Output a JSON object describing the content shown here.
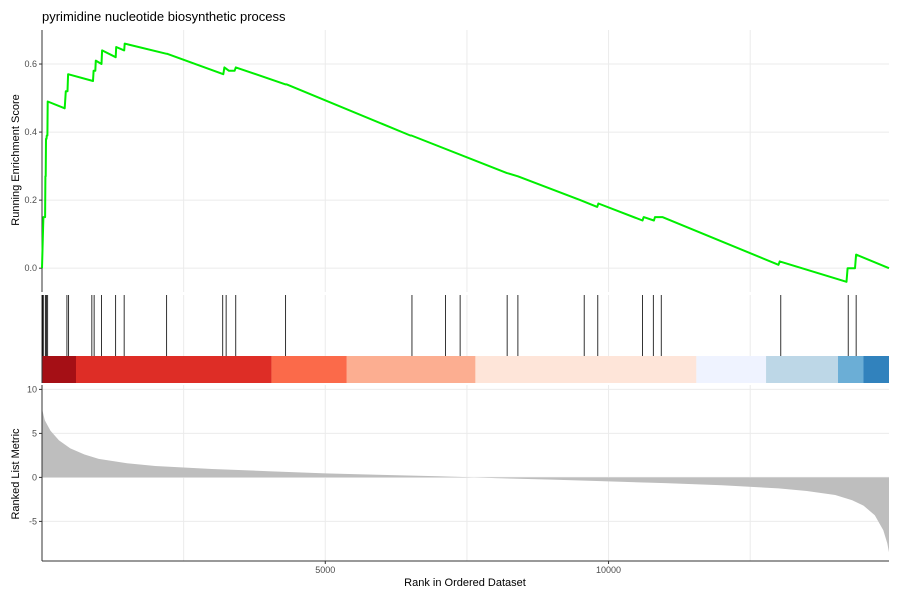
{
  "chart_data": {
    "type": "line",
    "title": "pyrimidine nucleotide biosynthetic process",
    "xlabel": "Rank in Ordered Dataset",
    "xlim": [
      0,
      14950
    ],
    "x_ticks": [
      {
        "value": 5000,
        "label": "5000"
      },
      {
        "value": 10000,
        "label": "10000"
      }
    ],
    "x_minor_gridlines": [
      2500,
      7500,
      12500
    ],
    "running_score": {
      "ylabel": "Running Enrichment Score",
      "ylim": [
        -0.07,
        0.7
      ],
      "y_ticks": [
        {
          "value": 0.0,
          "label": "0.0"
        },
        {
          "value": 0.2,
          "label": "0.2"
        },
        {
          "value": 0.4,
          "label": "0.4"
        },
        {
          "value": 0.6,
          "label": "0.6"
        }
      ],
      "color": "#00ee00",
      "points": [
        [
          0,
          0.0
        ],
        [
          20,
          0.12
        ],
        [
          25,
          0.15
        ],
        [
          55,
          0.15
        ],
        [
          60,
          0.27
        ],
        [
          65,
          0.27
        ],
        [
          70,
          0.38
        ],
        [
          80,
          0.38
        ],
        [
          85,
          0.39
        ],
        [
          95,
          0.39
        ],
        [
          100,
          0.49
        ],
        [
          400,
          0.47
        ],
        [
          420,
          0.52
        ],
        [
          450,
          0.52
        ],
        [
          460,
          0.57
        ],
        [
          900,
          0.55
        ],
        [
          910,
          0.58
        ],
        [
          940,
          0.58
        ],
        [
          950,
          0.61
        ],
        [
          1050,
          0.6
        ],
        [
          1060,
          0.64
        ],
        [
          1300,
          0.62
        ],
        [
          1310,
          0.65
        ],
        [
          1450,
          0.64
        ],
        [
          1460,
          0.66
        ],
        [
          2200,
          0.63
        ],
        [
          2210,
          0.63
        ],
        [
          3200,
          0.57
        ],
        [
          3220,
          0.59
        ],
        [
          3300,
          0.58
        ],
        [
          3400,
          0.58
        ],
        [
          3420,
          0.59
        ],
        [
          4300,
          0.54
        ],
        [
          4320,
          0.54
        ],
        [
          6500,
          0.39
        ],
        [
          6520,
          0.39
        ],
        [
          8200,
          0.28
        ],
        [
          8400,
          0.27
        ],
        [
          9500,
          0.2
        ],
        [
          9800,
          0.18
        ],
        [
          9820,
          0.19
        ],
        [
          10600,
          0.14
        ],
        [
          10620,
          0.15
        ],
        [
          10800,
          0.14
        ],
        [
          10820,
          0.15
        ],
        [
          10950,
          0.15
        ],
        [
          13000,
          0.01
        ],
        [
          13020,
          0.02
        ],
        [
          14200,
          -0.04
        ],
        [
          14220,
          0.0
        ],
        [
          14350,
          0.0
        ],
        [
          14370,
          0.04
        ],
        [
          14950,
          0.0
        ]
      ]
    },
    "gene_hits": [
      10,
      30,
      60,
      80,
      100,
      440,
      470,
      880,
      920,
      1050,
      1300,
      1450,
      2200,
      3190,
      3250,
      3420,
      4300,
      6530,
      7120,
      7380,
      8210,
      8400,
      9570,
      9810,
      10600,
      10790,
      10930,
      13040,
      14230,
      14370
    ],
    "rank_bands": [
      {
        "from": 0,
        "to": 600,
        "color": "#a50f15"
      },
      {
        "from": 600,
        "to": 4050,
        "color": "#de2d26"
      },
      {
        "from": 4050,
        "to": 5380,
        "color": "#fb6a4a"
      },
      {
        "from": 5380,
        "to": 7650,
        "color": "#fcae91"
      },
      {
        "from": 7650,
        "to": 11550,
        "color": "#fee5d9"
      },
      {
        "from": 11550,
        "to": 12780,
        "color": "#eff3ff"
      },
      {
        "from": 12780,
        "to": 14050,
        "color": "#bdd7e7"
      },
      {
        "from": 14050,
        "to": 14500,
        "color": "#6baed6"
      },
      {
        "from": 14500,
        "to": 14950,
        "color": "#3182bd"
      }
    ],
    "ranked_metric": {
      "ylabel": "Ranked List Metric",
      "ylim": [
        -9.5,
        10.5
      ],
      "y_ticks": [
        {
          "value": -5,
          "label": "-5"
        },
        {
          "value": 0,
          "label": "0"
        },
        {
          "value": 5,
          "label": "5"
        },
        {
          "value": 10,
          "label": "10"
        }
      ],
      "fill_color": "#bebebe",
      "points": [
        [
          0,
          7.8
        ],
        [
          50,
          6.5
        ],
        [
          150,
          5.3
        ],
        [
          300,
          4.2
        ],
        [
          500,
          3.3
        ],
        [
          750,
          2.6
        ],
        [
          1000,
          2.1
        ],
        [
          1500,
          1.6
        ],
        [
          2000,
          1.3
        ],
        [
          3000,
          0.95
        ],
        [
          4000,
          0.7
        ],
        [
          5000,
          0.45
        ],
        [
          6000,
          0.28
        ],
        [
          7000,
          0.12
        ],
        [
          7500,
          0.03
        ],
        [
          8000,
          -0.08
        ],
        [
          9000,
          -0.25
        ],
        [
          10000,
          -0.45
        ],
        [
          11000,
          -0.65
        ],
        [
          12000,
          -0.9
        ],
        [
          13000,
          -1.25
        ],
        [
          13500,
          -1.55
        ],
        [
          14000,
          -2.0
        ],
        [
          14300,
          -2.6
        ],
        [
          14500,
          -3.2
        ],
        [
          14700,
          -4.3
        ],
        [
          14850,
          -6.0
        ],
        [
          14920,
          -7.5
        ],
        [
          14950,
          -8.5
        ]
      ]
    }
  }
}
